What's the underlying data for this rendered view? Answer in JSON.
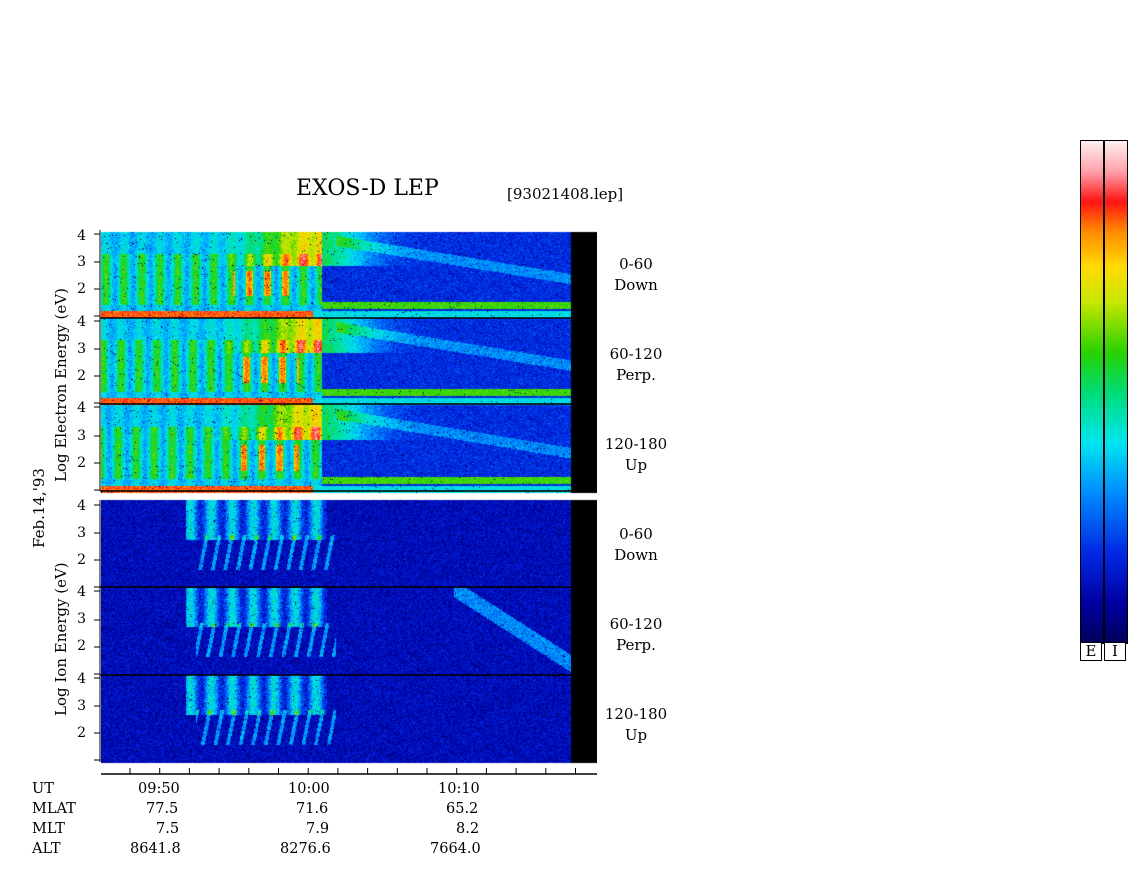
{
  "title": "EXOS-D LEP",
  "file_label": "[93021408.lep]",
  "date_label": "Feb.14,'93",
  "groups": {
    "electron": {
      "ylabel": "Log  Electron  Energy (eV)"
    },
    "ion": {
      "ylabel": "Log   Ion  Energy (eV)"
    }
  },
  "panels": [
    {
      "group": "electron",
      "angle": "0-60",
      "direction": "Down"
    },
    {
      "group": "electron",
      "angle": "60-120",
      "direction": "Perp."
    },
    {
      "group": "electron",
      "angle": "120-180",
      "direction": "Up"
    },
    {
      "group": "ion",
      "angle": "0-60",
      "direction": "Down"
    },
    {
      "group": "ion",
      "angle": "60-120",
      "direction": "Perp."
    },
    {
      "group": "ion",
      "angle": "120-180",
      "direction": "Up"
    }
  ],
  "y_ticks": [
    "4",
    "3",
    "2"
  ],
  "y_ticks_bottom": [
    "3",
    "2"
  ],
  "x_axis": {
    "rows": [
      {
        "label": "UT",
        "values": [
          "09:50",
          "10:00",
          "10:10"
        ]
      },
      {
        "label": "MLAT",
        "values": [
          "77.5",
          "71.6",
          "65.2"
        ]
      },
      {
        "label": "MLT",
        "values": [
          "7.5",
          "7.9",
          "8.2"
        ]
      },
      {
        "label": "ALT",
        "values": [
          "8641.8",
          "8276.6",
          "7664.0"
        ]
      }
    ]
  },
  "colorbar": {
    "labels": [
      "E",
      "I"
    ]
  },
  "colors": {
    "background": "#0000a0",
    "panel_end": "#000000"
  },
  "chart_data": {
    "type": "heatmap",
    "title": "EXOS-D LEP",
    "xlabel": "UT",
    "x_ticks": [
      "09:50",
      "10:00",
      "10:10"
    ],
    "ylabel_electron": "Log Electron Energy (eV)",
    "ylabel_ion": "Log Ion Energy (eV)",
    "ylim": [
      1,
      4
    ],
    "y_scale": "log10",
    "panels": [
      "0-60 Down",
      "60-120 Perp.",
      "120-180 Up",
      "0-60 Down",
      "60-120 Perp.",
      "120-180 Up"
    ],
    "colorscale": "dark blue - blue - cyan - green - yellow - orange - red - white"
  }
}
